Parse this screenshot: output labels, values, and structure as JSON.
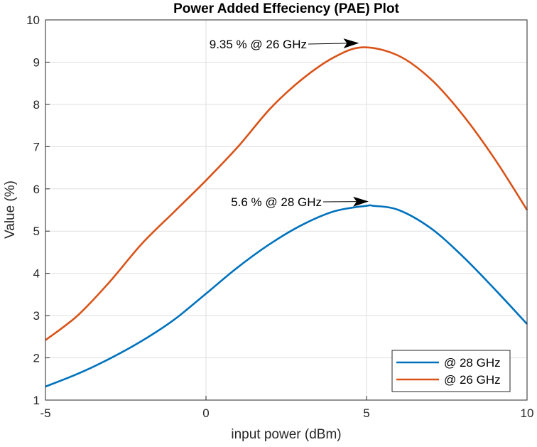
{
  "chart_data": {
    "type": "line",
    "title": "Power Added Effeciency (PAE) Plot",
    "xlabel": "input power (dBm)",
    "ylabel": "Value (%)",
    "xlim": [
      -5,
      10
    ],
    "ylim": [
      1,
      10
    ],
    "xticks": [
      -5,
      0,
      5,
      10
    ],
    "yticks": [
      1,
      2,
      3,
      4,
      5,
      6,
      7,
      8,
      9,
      10
    ],
    "grid": true,
    "legend_position": "bottom-right",
    "series": [
      {
        "name": "@ 28 GHz",
        "color": "#0072BD",
        "x": [
          -5,
          -4,
          -3,
          -2,
          -1,
          0,
          1,
          2,
          3,
          4,
          5,
          5.2,
          6,
          7,
          8,
          9,
          10
        ],
        "y": [
          1.32,
          1.62,
          1.98,
          2.4,
          2.9,
          3.52,
          4.15,
          4.7,
          5.15,
          5.47,
          5.6,
          5.6,
          5.5,
          5.07,
          4.4,
          3.62,
          2.8
        ]
      },
      {
        "name": "@ 26 GHz",
        "color": "#D95319",
        "x": [
          -5,
          -4,
          -3,
          -2,
          -1,
          0,
          1,
          2,
          3,
          4,
          4.9,
          6,
          7,
          8,
          9,
          10
        ],
        "y": [
          2.42,
          3.0,
          3.8,
          4.7,
          5.45,
          6.2,
          7.0,
          7.9,
          8.6,
          9.12,
          9.35,
          9.15,
          8.6,
          7.75,
          6.7,
          5.5
        ]
      }
    ],
    "annotations": [
      {
        "text": "9.35 % @ 26 GHz",
        "x": 4.9,
        "y": 9.35
      },
      {
        "text": "5.6 % @ 28 GHz",
        "x": 5.2,
        "y": 5.6
      }
    ]
  }
}
